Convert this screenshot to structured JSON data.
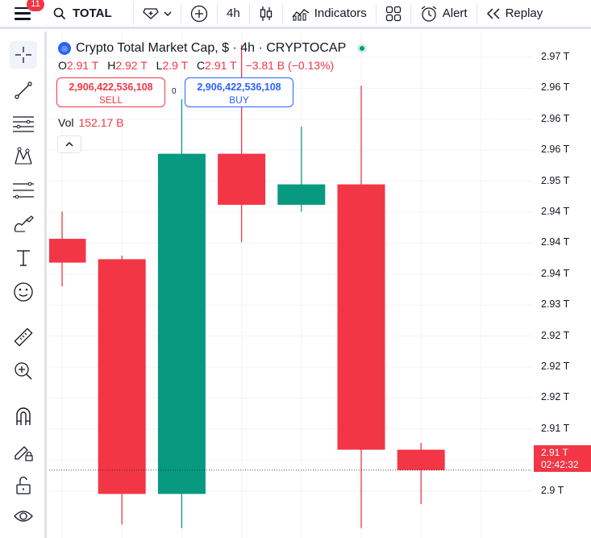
{
  "toolbar": {
    "notifications": "11",
    "symbol": "TOTAL",
    "interval": "4h",
    "indicators": "Indicators",
    "alert": "Alert",
    "replay": "Replay"
  },
  "legend": {
    "title": "Crypto Total Market Cap, $ · 4h · CRYPTOCAP",
    "o_label": "O",
    "o_value": "2.91 T",
    "h_label": "H",
    "h_value": "2.92 T",
    "l_label": "L",
    "l_value": "2.9 T",
    "c_label": "C",
    "c_value": "2.91 T",
    "change": "−3.81 B (−0.13%)",
    "sell_price": "2,906,422,536,108",
    "sell_label": "SELL",
    "buy_price": "2,906,422,536,108",
    "buy_label": "BUY",
    "spread": "0",
    "vol_label": "Vol",
    "vol_value": "152.17 B"
  },
  "price_axis": {
    "ticks": [
      "2.97 T",
      "2.96 T",
      "2.96 T",
      "2.96 T",
      "2.95 T",
      "2.94 T",
      "2.94 T",
      "2.94 T",
      "2.93 T",
      "2.92 T",
      "2.92 T",
      "2.92 T",
      "2.91 T",
      "2.9 T",
      "2.9 T"
    ],
    "last_price": "2.91 T",
    "countdown": "02:42:32"
  },
  "colors": {
    "up": "#089981",
    "down": "#f23645",
    "accent": "#2962ff"
  },
  "chart_data": {
    "type": "candlestick",
    "y_unit": "T USD",
    "candles": [
      {
        "o": 2.9435,
        "h": 2.9475,
        "l": 2.9365,
        "c": 2.94,
        "dir": "down"
      },
      {
        "o": 2.9405,
        "h": 2.941,
        "l": 2.9015,
        "c": 2.906,
        "dir": "down"
      },
      {
        "o": 2.906,
        "h": 2.964,
        "l": 2.901,
        "c": 2.956,
        "dir": "up"
      },
      {
        "o": 2.956,
        "h": 2.972,
        "l": 2.943,
        "c": 2.9485,
        "dir": "down"
      },
      {
        "o": 2.9485,
        "h": 2.96,
        "l": 2.9475,
        "c": 2.9515,
        "dir": "up"
      },
      {
        "o": 2.9515,
        "h": 2.966,
        "l": 2.901,
        "c": 2.9125,
        "dir": "down"
      },
      {
        "o": 2.9125,
        "h": 2.9135,
        "l": 2.9045,
        "c": 2.9095,
        "dir": "down"
      }
    ],
    "current_price": 2.9095,
    "ylim": [
      2.9,
      2.9735
    ],
    "grid": true
  }
}
